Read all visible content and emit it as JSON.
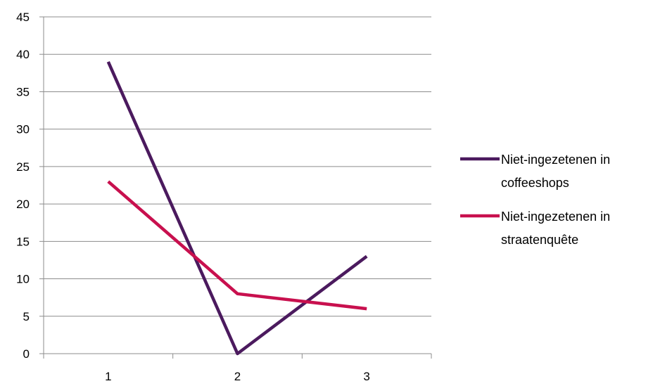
{
  "chart_data": {
    "type": "line",
    "title": "",
    "xlabel": "",
    "ylabel": "",
    "categories": [
      "1",
      "2",
      "3"
    ],
    "ylim": [
      0,
      45
    ],
    "ytick_step": 5,
    "grid": true,
    "legend_position": "right",
    "series": [
      {
        "name": "Niet-ingezetenen in coffeeshops",
        "legend_lines": [
          "Niet-ingezetenen in",
          "coffeeshops"
        ],
        "color": "#4b1a5e",
        "values": [
          39,
          0,
          13
        ]
      },
      {
        "name": "Niet-ingezetenen in straatenquête",
        "legend_lines": [
          "Niet-ingezetenen in",
          "straatenquête"
        ],
        "color": "#c8104e",
        "values": [
          23,
          8,
          6
        ]
      }
    ]
  }
}
